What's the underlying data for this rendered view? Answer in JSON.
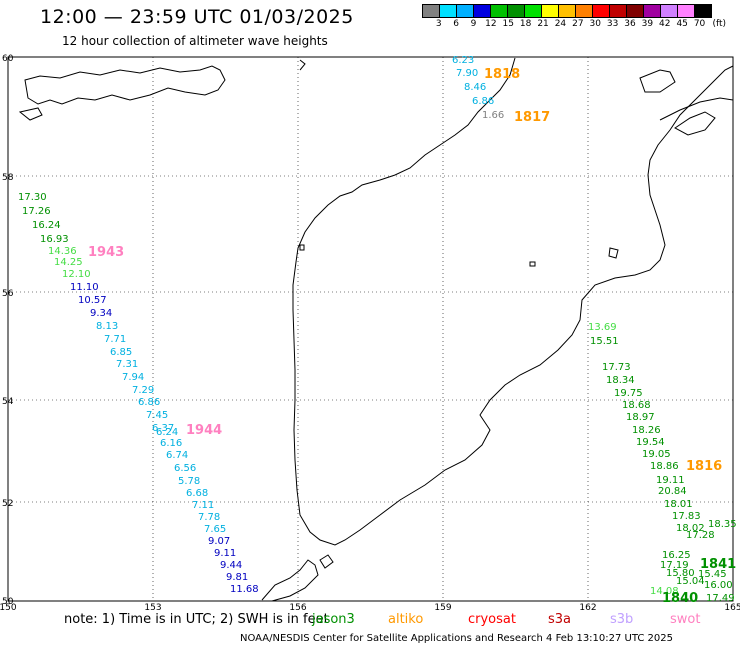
{
  "header": {
    "title": "12:00 — 23:59 UTC 01/03/2025",
    "subtitle": "12 hour collection of altimeter wave heights"
  },
  "color_scale": {
    "unit": "(ft)",
    "labels": [
      "3",
      "6",
      "9",
      "12",
      "15",
      "18",
      "21",
      "24",
      "27",
      "30",
      "33",
      "36",
      "39",
      "42",
      "45",
      "70"
    ],
    "colors": [
      "#808080",
      "#00e0ff",
      "#00b0ff",
      "#0000e0",
      "#00c000",
      "#009000",
      "#00e000",
      "#ffff00",
      "#ffc000",
      "#ff8000",
      "#ff0000",
      "#c00000",
      "#800000",
      "#a000a0",
      "#d080ff",
      "#ff80ff",
      "#000000"
    ]
  },
  "map": {
    "lat_labels": [
      "60",
      "58",
      "56",
      "54",
      "52",
      "50"
    ],
    "lon_labels": [
      "150",
      "153",
      "156",
      "159",
      "162",
      "165"
    ]
  },
  "passes": [
    {
      "label": "1818",
      "color": "#ff9900"
    },
    {
      "label": "1817",
      "color": "#ff9900"
    },
    {
      "label": "1943",
      "color": "#ff80c0"
    },
    {
      "label": "1944",
      "color": "#ff80c0"
    },
    {
      "label": "1816",
      "color": "#ff9900"
    },
    {
      "label": "1841",
      "color": "#009000"
    },
    {
      "label": "1840",
      "color": "#009000"
    }
  ],
  "observations": [
    {
      "v": "6.23",
      "c": "#00b0e0"
    },
    {
      "v": "7.90",
      "c": "#00b0e0"
    },
    {
      "v": "8.46",
      "c": "#00b0e0"
    },
    {
      "v": "6.86",
      "c": "#00b0e0"
    },
    {
      "v": "1.66",
      "c": "#808080"
    },
    {
      "v": "17.30",
      "c": "#009000"
    },
    {
      "v": "17.26",
      "c": "#009000"
    },
    {
      "v": "16.24",
      "c": "#009000"
    },
    {
      "v": "16.93",
      "c": "#009000"
    },
    {
      "v": "14.36",
      "c": "#44dd44"
    },
    {
      "v": "14.25",
      "c": "#44dd44"
    },
    {
      "v": "12.10",
      "c": "#44dd44"
    },
    {
      "v": "11.10",
      "c": "#0000c0"
    },
    {
      "v": "10.57",
      "c": "#0000c0"
    },
    {
      "v": "9.34",
      "c": "#0000c0"
    },
    {
      "v": "8.13",
      "c": "#00b0e0"
    },
    {
      "v": "7.71",
      "c": "#00b0e0"
    },
    {
      "v": "6.85",
      "c": "#00b0e0"
    },
    {
      "v": "7.31",
      "c": "#00b0e0"
    },
    {
      "v": "7.94",
      "c": "#00b0e0"
    },
    {
      "v": "7.29",
      "c": "#00b0e0"
    },
    {
      "v": "6.86",
      "c": "#00b0e0"
    },
    {
      "v": "7.45",
      "c": "#00b0e0"
    },
    {
      "v": "6.37",
      "c": "#00b0e0"
    },
    {
      "v": "6.24",
      "c": "#00b0e0"
    },
    {
      "v": "6.16",
      "c": "#00b0e0"
    },
    {
      "v": "6.74",
      "c": "#00b0e0"
    },
    {
      "v": "6.56",
      "c": "#00b0e0"
    },
    {
      "v": "5.78",
      "c": "#00b0e0"
    },
    {
      "v": "6.68",
      "c": "#00b0e0"
    },
    {
      "v": "7.11",
      "c": "#00b0e0"
    },
    {
      "v": "7.78",
      "c": "#00b0e0"
    },
    {
      "v": "7.65",
      "c": "#00b0e0"
    },
    {
      "v": "9.07",
      "c": "#0000c0"
    },
    {
      "v": "9.11",
      "c": "#0000c0"
    },
    {
      "v": "9.44",
      "c": "#0000c0"
    },
    {
      "v": "9.81",
      "c": "#0000c0"
    },
    {
      "v": "11.68",
      "c": "#0000c0"
    },
    {
      "v": "13.69",
      "c": "#44dd44"
    },
    {
      "v": "15.51",
      "c": "#009000"
    },
    {
      "v": "17.73",
      "c": "#009000"
    },
    {
      "v": "18.34",
      "c": "#009000"
    },
    {
      "v": "19.75",
      "c": "#009000"
    },
    {
      "v": "18.68",
      "c": "#009000"
    },
    {
      "v": "18.97",
      "c": "#009000"
    },
    {
      "v": "18.26",
      "c": "#009000"
    },
    {
      "v": "19.54",
      "c": "#009000"
    },
    {
      "v": "19.05",
      "c": "#009000"
    },
    {
      "v": "18.86",
      "c": "#009000"
    },
    {
      "v": "19.11",
      "c": "#009000"
    },
    {
      "v": "20.84",
      "c": "#009000"
    },
    {
      "v": "18.01",
      "c": "#009000"
    },
    {
      "v": "17.83",
      "c": "#009000"
    },
    {
      "v": "18.02",
      "c": "#009000"
    },
    {
      "v": "17.28",
      "c": "#009000"
    },
    {
      "v": "18.35",
      "c": "#009000"
    },
    {
      "v": "17.19",
      "c": "#009000"
    },
    {
      "v": "16.25",
      "c": "#009000"
    },
    {
      "v": "15.80",
      "c": "#009000"
    },
    {
      "v": "15.45",
      "c": "#009000"
    },
    {
      "v": "15.04",
      "c": "#009000"
    },
    {
      "v": "16.00",
      "c": "#009000"
    },
    {
      "v": "14.08",
      "c": "#44dd44"
    },
    {
      "v": "17.49",
      "c": "#009000"
    }
  ],
  "footer": {
    "note": "note:  1) Time is in UTC;  2) SWH is in feet",
    "missions": [
      {
        "name": "jason3",
        "color": "#009000"
      },
      {
        "name": "altiko",
        "color": "#ff9900"
      },
      {
        "name": "cryosat",
        "color": "#ff0000"
      },
      {
        "name": "s3a",
        "color": "#c00000"
      },
      {
        "name": "s3b",
        "color": "#c0a0ff"
      },
      {
        "name": "swot",
        "color": "#ff80c0"
      }
    ],
    "credit": "NOAA/NESDIS Center for Satellite Applications and Research     4 Feb 13:10:27 UTC 2025"
  }
}
